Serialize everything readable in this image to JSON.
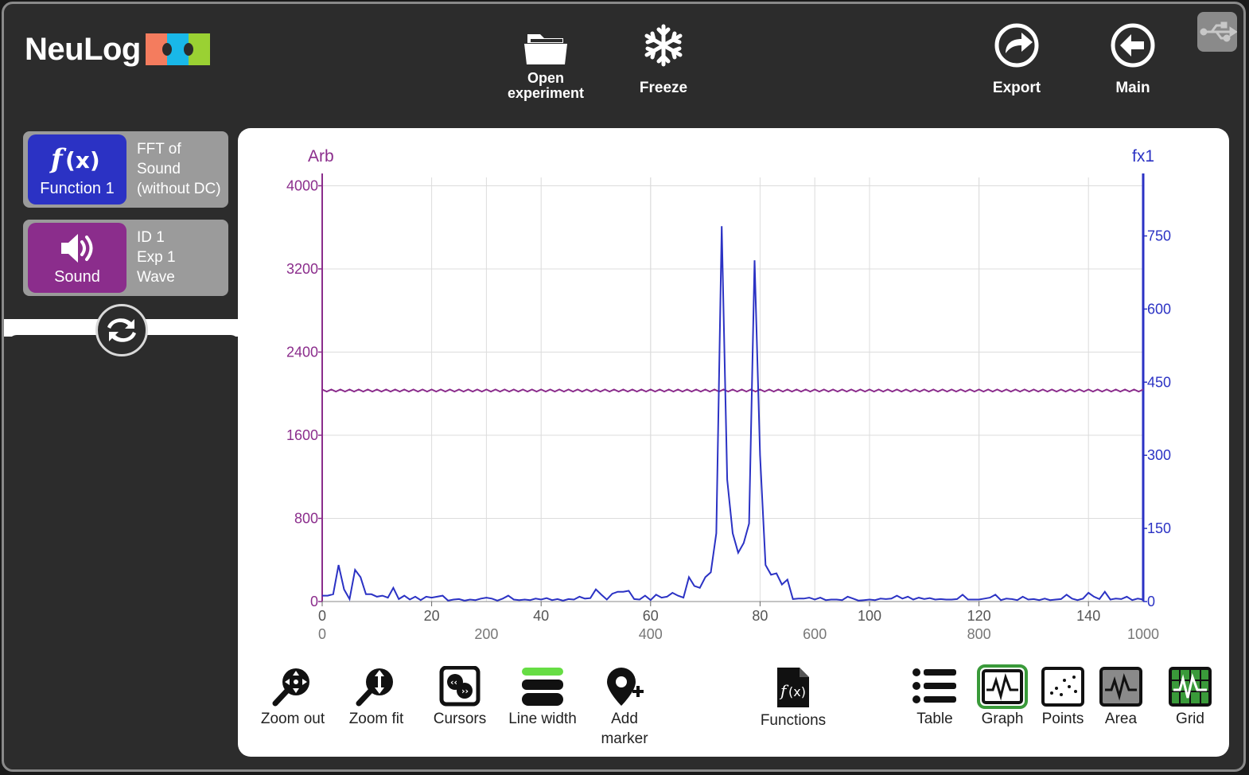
{
  "app": {
    "logo_text": "NeuLog"
  },
  "colors": {
    "function_blue": "#2b32c4",
    "sound_purple": "#8b2d8c",
    "arb_axis": "#8b2d8c",
    "fx_axis": "#2b32c4",
    "logo": [
      "#f47c5e",
      "#19b8e8",
      "#9ad133"
    ]
  },
  "toolbar_top": {
    "open": {
      "label": "Open experiment",
      "icon": "folder-icon"
    },
    "freeze": {
      "label": "Freeze",
      "icon": "snowflake-icon"
    },
    "export": {
      "label": "Export",
      "icon": "export-icon"
    },
    "main": {
      "label": "Main",
      "icon": "back-arrow-icon"
    }
  },
  "modules": [
    {
      "badge_label": "Function 1",
      "icon": "function-icon",
      "info": [
        "FFT of",
        "Sound",
        "(without DC)"
      ]
    },
    {
      "badge_label": "Sound",
      "icon": "speaker-icon",
      "info": [
        "ID 1",
        "Exp 1",
        "Wave"
      ]
    }
  ],
  "bottom_toolbar": {
    "zoom_out": "Zoom out",
    "zoom_fit": "Zoom fit",
    "cursors": "Cursors",
    "line_width": "Line width",
    "add_marker_1": "Add",
    "add_marker_2": "marker",
    "functions": "Functions",
    "table": "Table",
    "graph": "Graph",
    "points": "Points",
    "area": "Area",
    "grid": "Grid",
    "selected": "Graph"
  },
  "chart_data": {
    "type": "line",
    "left_axis_label": "Arb",
    "right_axis_label": "fx1",
    "y_left": {
      "ticks": [
        0,
        800,
        1600,
        2400,
        3200,
        4000
      ],
      "range": [
        0,
        4080
      ]
    },
    "y_right": {
      "ticks": [
        0,
        150,
        300,
        450,
        600,
        750
      ],
      "range": [
        0,
        870
      ]
    },
    "x_top": {
      "ticks": [
        0,
        20,
        40,
        60,
        80,
        100,
        120,
        140
      ],
      "range": [
        0,
        150
      ]
    },
    "x_bottom": {
      "ticks": [
        0,
        200,
        400,
        600,
        800,
        1000
      ],
      "range": [
        0,
        1000
      ]
    },
    "grid": true,
    "series": [
      {
        "name": "Arb",
        "axis": "left",
        "color": "#8b2d8c",
        "constant": 2030,
        "ripple": 20
      },
      {
        "name": "fx1",
        "axis": "right",
        "color": "#2b32c4",
        "x": [
          0,
          1,
          2,
          3,
          4,
          5,
          6,
          7,
          8,
          9,
          10,
          11,
          12,
          13,
          14,
          15,
          16,
          17,
          18,
          19,
          20,
          21,
          22,
          23,
          24,
          25,
          26,
          27,
          28,
          29,
          30,
          31,
          32,
          33,
          34,
          35,
          36,
          37,
          38,
          39,
          40,
          41,
          42,
          43,
          44,
          45,
          46,
          47,
          48,
          49,
          50,
          51,
          52,
          53,
          54,
          55,
          56,
          57,
          58,
          59,
          60,
          61,
          62,
          63,
          64,
          65,
          66,
          67,
          68,
          69,
          70,
          71,
          72,
          73,
          74,
          75,
          76,
          77,
          78,
          79,
          80,
          81,
          82,
          83,
          84,
          85,
          86,
          87,
          88,
          89,
          90,
          91,
          92,
          93,
          94,
          95,
          96,
          97,
          98,
          99,
          100,
          101,
          102,
          103,
          104,
          105,
          106,
          107,
          108,
          109,
          110,
          111,
          112,
          113,
          114,
          115,
          116,
          117,
          118,
          119,
          120,
          121,
          122,
          123,
          124,
          125,
          126,
          127,
          128,
          129,
          130,
          131,
          132,
          133,
          134,
          135,
          136,
          137,
          138,
          139,
          140,
          141,
          142,
          143,
          144,
          145,
          146,
          147,
          148,
          149,
          150
        ],
        "y": [
          12,
          12,
          15,
          75,
          25,
          5,
          65,
          50,
          15,
          15,
          10,
          12,
          8,
          28,
          5,
          12,
          4,
          10,
          3,
          10,
          8,
          10,
          12,
          2,
          4,
          5,
          2,
          4,
          3,
          6,
          8,
          6,
          2,
          6,
          12,
          4,
          3,
          4,
          3,
          6,
          4,
          7,
          3,
          5,
          2,
          5,
          4,
          10,
          6,
          7,
          25,
          14,
          4,
          16,
          20,
          20,
          22,
          5,
          4,
          12,
          3,
          14,
          8,
          10,
          18,
          12,
          8,
          50,
          32,
          28,
          50,
          60,
          140,
          770,
          250,
          140,
          100,
          120,
          160,
          700,
          300,
          75,
          55,
          58,
          35,
          45,
          5,
          6,
          6,
          8,
          4,
          8,
          3,
          4,
          4,
          3,
          10,
          6,
          2,
          3,
          4,
          3,
          6,
          5,
          6,
          12,
          6,
          10,
          4,
          8,
          5,
          7,
          4,
          5,
          4,
          4,
          5,
          14,
          4,
          4,
          4,
          6,
          8,
          14,
          3,
          6,
          5,
          3,
          10,
          4,
          5,
          3,
          6,
          3,
          4,
          5,
          14,
          6,
          3,
          6,
          18,
          10,
          5,
          20,
          4,
          6,
          5,
          10,
          3,
          6,
          4
        ]
      }
    ]
  }
}
